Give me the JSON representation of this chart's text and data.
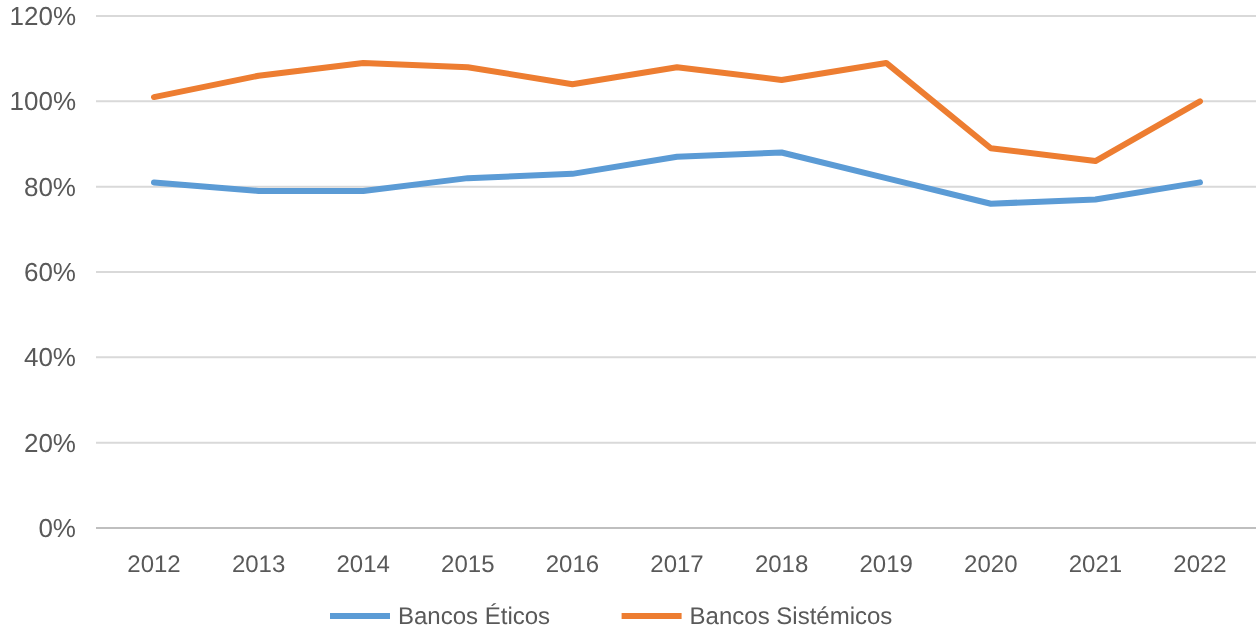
{
  "chart_data": {
    "type": "line",
    "categories": [
      "2012",
      "2013",
      "2014",
      "2015",
      "2016",
      "2017",
      "2018",
      "2019",
      "2020",
      "2021",
      "2022"
    ],
    "series": [
      {
        "name": "Bancos Éticos",
        "color": "#5b9bd5",
        "values": [
          81,
          79,
          79,
          82,
          83,
          87,
          88,
          82,
          76,
          77,
          81
        ]
      },
      {
        "name": "Bancos Sistémicos",
        "color": "#ed7d31",
        "values": [
          101,
          106,
          109,
          108,
          104,
          108,
          105,
          109,
          89,
          86,
          100
        ]
      }
    ],
    "ylim": [
      0,
      120
    ],
    "yticks": [
      {
        "value": 0,
        "label": "0%"
      },
      {
        "value": 20,
        "label": "20%"
      },
      {
        "value": 40,
        "label": "40%"
      },
      {
        "value": 60,
        "label": "60%"
      },
      {
        "value": 80,
        "label": "80%"
      },
      {
        "value": 100,
        "label": "100%"
      },
      {
        "value": 120,
        "label": "120%"
      }
    ],
    "grid": "y",
    "legend": "bottom",
    "marker": "none",
    "line_style": "solid"
  }
}
